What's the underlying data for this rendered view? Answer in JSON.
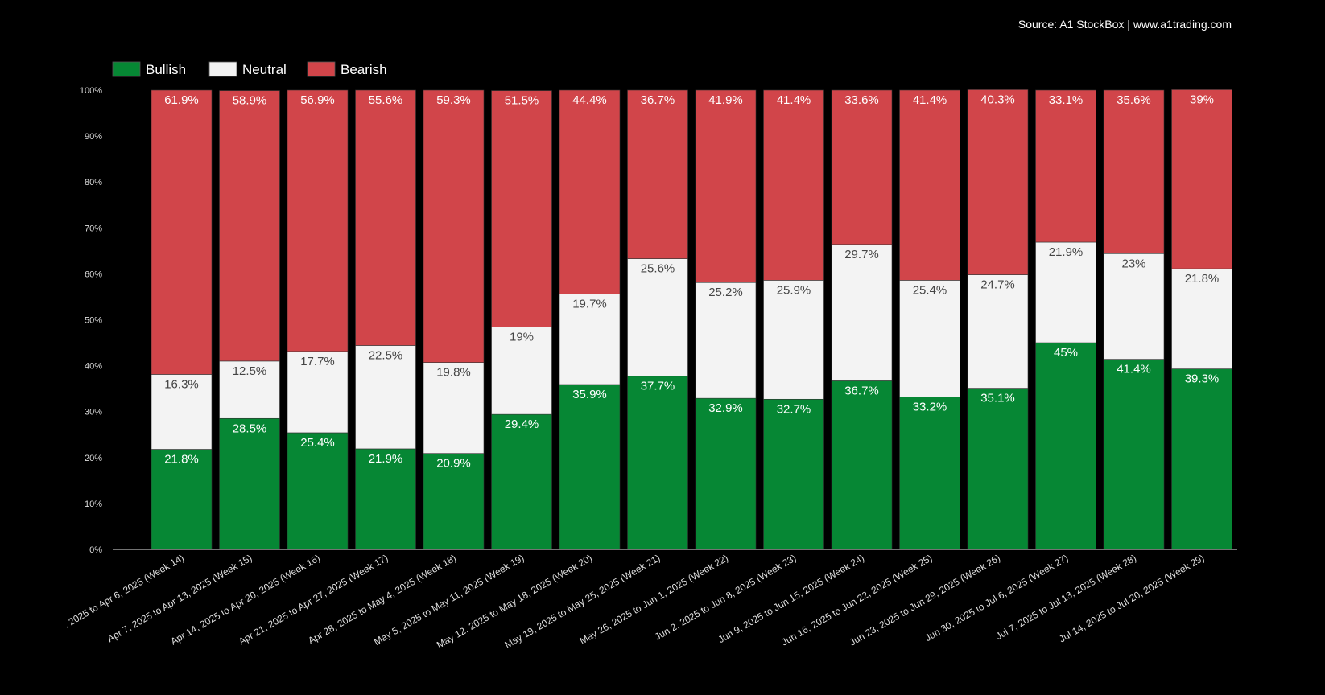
{
  "source": "Source: A1 StockBox | www.a1trading.com",
  "chart_data": {
    "type": "bar",
    "stacked": true,
    "legend_position": "top-left",
    "ylim": [
      0,
      100
    ],
    "yticks": [
      "0%",
      "10%",
      "20%",
      "30%",
      "40%",
      "50%",
      "60%",
      "70%",
      "80%",
      "90%",
      "100%"
    ],
    "categories": [
      ", 2025 to Apr 6, 2025 (Week 14)",
      "Apr 7, 2025 to Apr 13, 2025 (Week 15)",
      "Apr 14, 2025 to Apr 20, 2025 (Week 16)",
      "Apr 21, 2025 to Apr 27, 2025 (Week 17)",
      "Apr 28, 2025 to May 4, 2025 (Week 18)",
      "May 5, 2025 to May 11, 2025 (Week 19)",
      "May 12, 2025 to May 18, 2025 (Week 20)",
      "May 19, 2025 to May 25, 2025 (Week 21)",
      "May 26, 2025 to Jun 1, 2025 (Week 22)",
      "Jun 2, 2025 to Jun 8, 2025 (Week 23)",
      "Jun 9, 2025 to Jun 15, 2025 (Week 24)",
      "Jun 16, 2025 to Jun 22, 2025 (Week 25)",
      "Jun 23, 2025 to Jun 29, 2025 (Week 26)",
      "Jun 30, 2025 to Jul 6, 2025 (Week 27)",
      "Jul 7, 2025 to Jul 13, 2025 (Week 28)",
      "Jul 14, 2025 to Jul 20, 2025 (Week 29)"
    ],
    "series": [
      {
        "name": "Bullish",
        "color": "#068734",
        "label_color": "#ffffff",
        "values": [
          21.8,
          28.5,
          25.4,
          21.9,
          20.9,
          29.4,
          35.9,
          37.7,
          32.9,
          32.7,
          36.7,
          33.2,
          35.1,
          45,
          41.4,
          39.3
        ]
      },
      {
        "name": "Neutral",
        "color": "#f3f3f3",
        "label_color": "#444444",
        "values": [
          16.3,
          12.5,
          17.7,
          22.5,
          19.8,
          19,
          19.7,
          25.6,
          25.2,
          25.9,
          29.7,
          25.4,
          24.7,
          21.9,
          23,
          21.8
        ]
      },
      {
        "name": "Bearish",
        "color": "#d1454a",
        "label_color": "#ffffff",
        "values": [
          61.9,
          58.9,
          56.9,
          55.6,
          59.3,
          51.5,
          44.4,
          36.7,
          41.9,
          41.4,
          33.6,
          41.4,
          40.3,
          33.1,
          35.6,
          39
        ]
      }
    ]
  }
}
